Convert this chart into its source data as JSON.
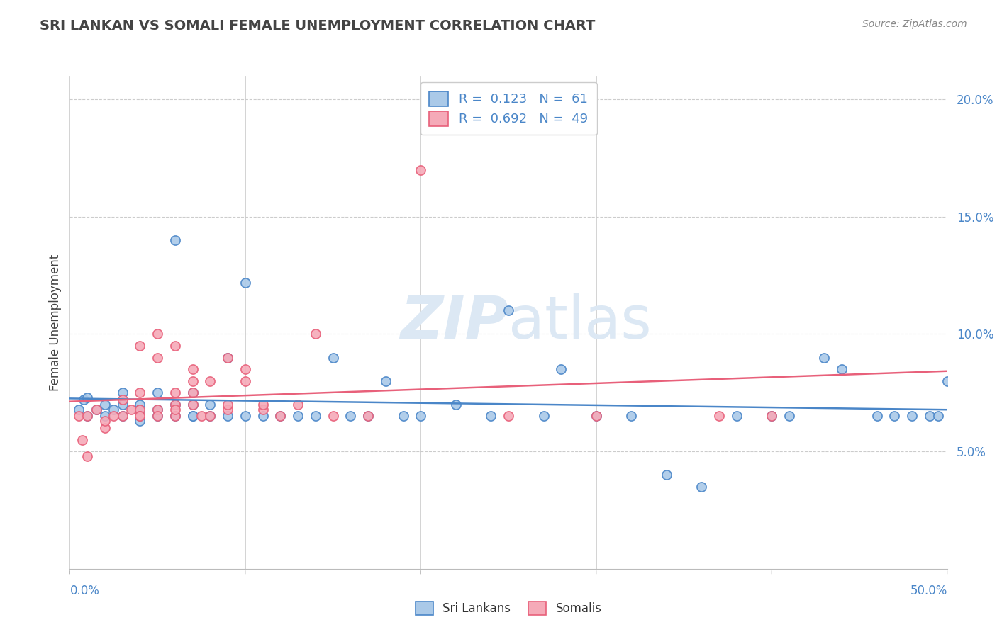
{
  "title": "SRI LANKAN VS SOMALI FEMALE UNEMPLOYMENT CORRELATION CHART",
  "source": "Source: ZipAtlas.com",
  "ylabel": "Female Unemployment",
  "xlim": [
    0.0,
    0.5
  ],
  "ylim": [
    0.0,
    0.21
  ],
  "yticks": [
    0.05,
    0.1,
    0.15,
    0.2
  ],
  "ytick_labels": [
    "5.0%",
    "10.0%",
    "15.0%",
    "20.0%"
  ],
  "xtick_labels": [
    "0.0%",
    "50.0%"
  ],
  "sri_lankan_R": "0.123",
  "sri_lankan_N": "61",
  "somali_R": "0.692",
  "somali_N": "49",
  "sri_lankan_color": "#aac9e8",
  "somali_color": "#f5aab8",
  "sri_lankan_line_color": "#4a86c8",
  "somali_line_color": "#e8607a",
  "legend_text_color": "#4a86c8",
  "title_color": "#444444",
  "source_color": "#888888",
  "background_color": "#ffffff",
  "grid_color": "#cccccc",
  "watermark_color": "#dce8f4",
  "sri_lankans_x": [
    0.005,
    0.008,
    0.01,
    0.01,
    0.015,
    0.02,
    0.02,
    0.025,
    0.03,
    0.03,
    0.03,
    0.04,
    0.04,
    0.04,
    0.04,
    0.05,
    0.05,
    0.05,
    0.06,
    0.06,
    0.06,
    0.07,
    0.07,
    0.07,
    0.07,
    0.08,
    0.08,
    0.09,
    0.09,
    0.1,
    0.1,
    0.11,
    0.12,
    0.13,
    0.14,
    0.15,
    0.16,
    0.17,
    0.18,
    0.19,
    0.2,
    0.22,
    0.24,
    0.25,
    0.27,
    0.28,
    0.3,
    0.32,
    0.34,
    0.36,
    0.38,
    0.4,
    0.41,
    0.43,
    0.44,
    0.46,
    0.47,
    0.48,
    0.49,
    0.495,
    0.5
  ],
  "sri_lankans_y": [
    0.068,
    0.072,
    0.065,
    0.073,
    0.068,
    0.07,
    0.065,
    0.068,
    0.065,
    0.07,
    0.075,
    0.063,
    0.07,
    0.065,
    0.068,
    0.065,
    0.075,
    0.068,
    0.07,
    0.065,
    0.14,
    0.065,
    0.07,
    0.075,
    0.065,
    0.07,
    0.065,
    0.09,
    0.065,
    0.122,
    0.065,
    0.065,
    0.065,
    0.065,
    0.065,
    0.09,
    0.065,
    0.065,
    0.08,
    0.065,
    0.065,
    0.07,
    0.065,
    0.11,
    0.065,
    0.085,
    0.065,
    0.065,
    0.04,
    0.035,
    0.065,
    0.065,
    0.065,
    0.09,
    0.085,
    0.065,
    0.065,
    0.065,
    0.065,
    0.065,
    0.08
  ],
  "somalis_x": [
    0.005,
    0.007,
    0.01,
    0.01,
    0.015,
    0.02,
    0.02,
    0.025,
    0.03,
    0.03,
    0.035,
    0.04,
    0.04,
    0.04,
    0.04,
    0.04,
    0.05,
    0.05,
    0.05,
    0.05,
    0.06,
    0.06,
    0.06,
    0.06,
    0.06,
    0.07,
    0.07,
    0.07,
    0.07,
    0.075,
    0.08,
    0.08,
    0.09,
    0.09,
    0.09,
    0.1,
    0.1,
    0.11,
    0.11,
    0.12,
    0.13,
    0.14,
    0.15,
    0.17,
    0.2,
    0.25,
    0.3,
    0.37,
    0.4
  ],
  "somalis_y": [
    0.065,
    0.055,
    0.048,
    0.065,
    0.068,
    0.06,
    0.063,
    0.065,
    0.065,
    0.072,
    0.068,
    0.068,
    0.075,
    0.065,
    0.095,
    0.065,
    0.09,
    0.1,
    0.068,
    0.065,
    0.065,
    0.095,
    0.07,
    0.075,
    0.068,
    0.08,
    0.075,
    0.07,
    0.085,
    0.065,
    0.065,
    0.08,
    0.068,
    0.07,
    0.09,
    0.085,
    0.08,
    0.068,
    0.07,
    0.065,
    0.07,
    0.1,
    0.065,
    0.065,
    0.17,
    0.065,
    0.065,
    0.065,
    0.065
  ]
}
